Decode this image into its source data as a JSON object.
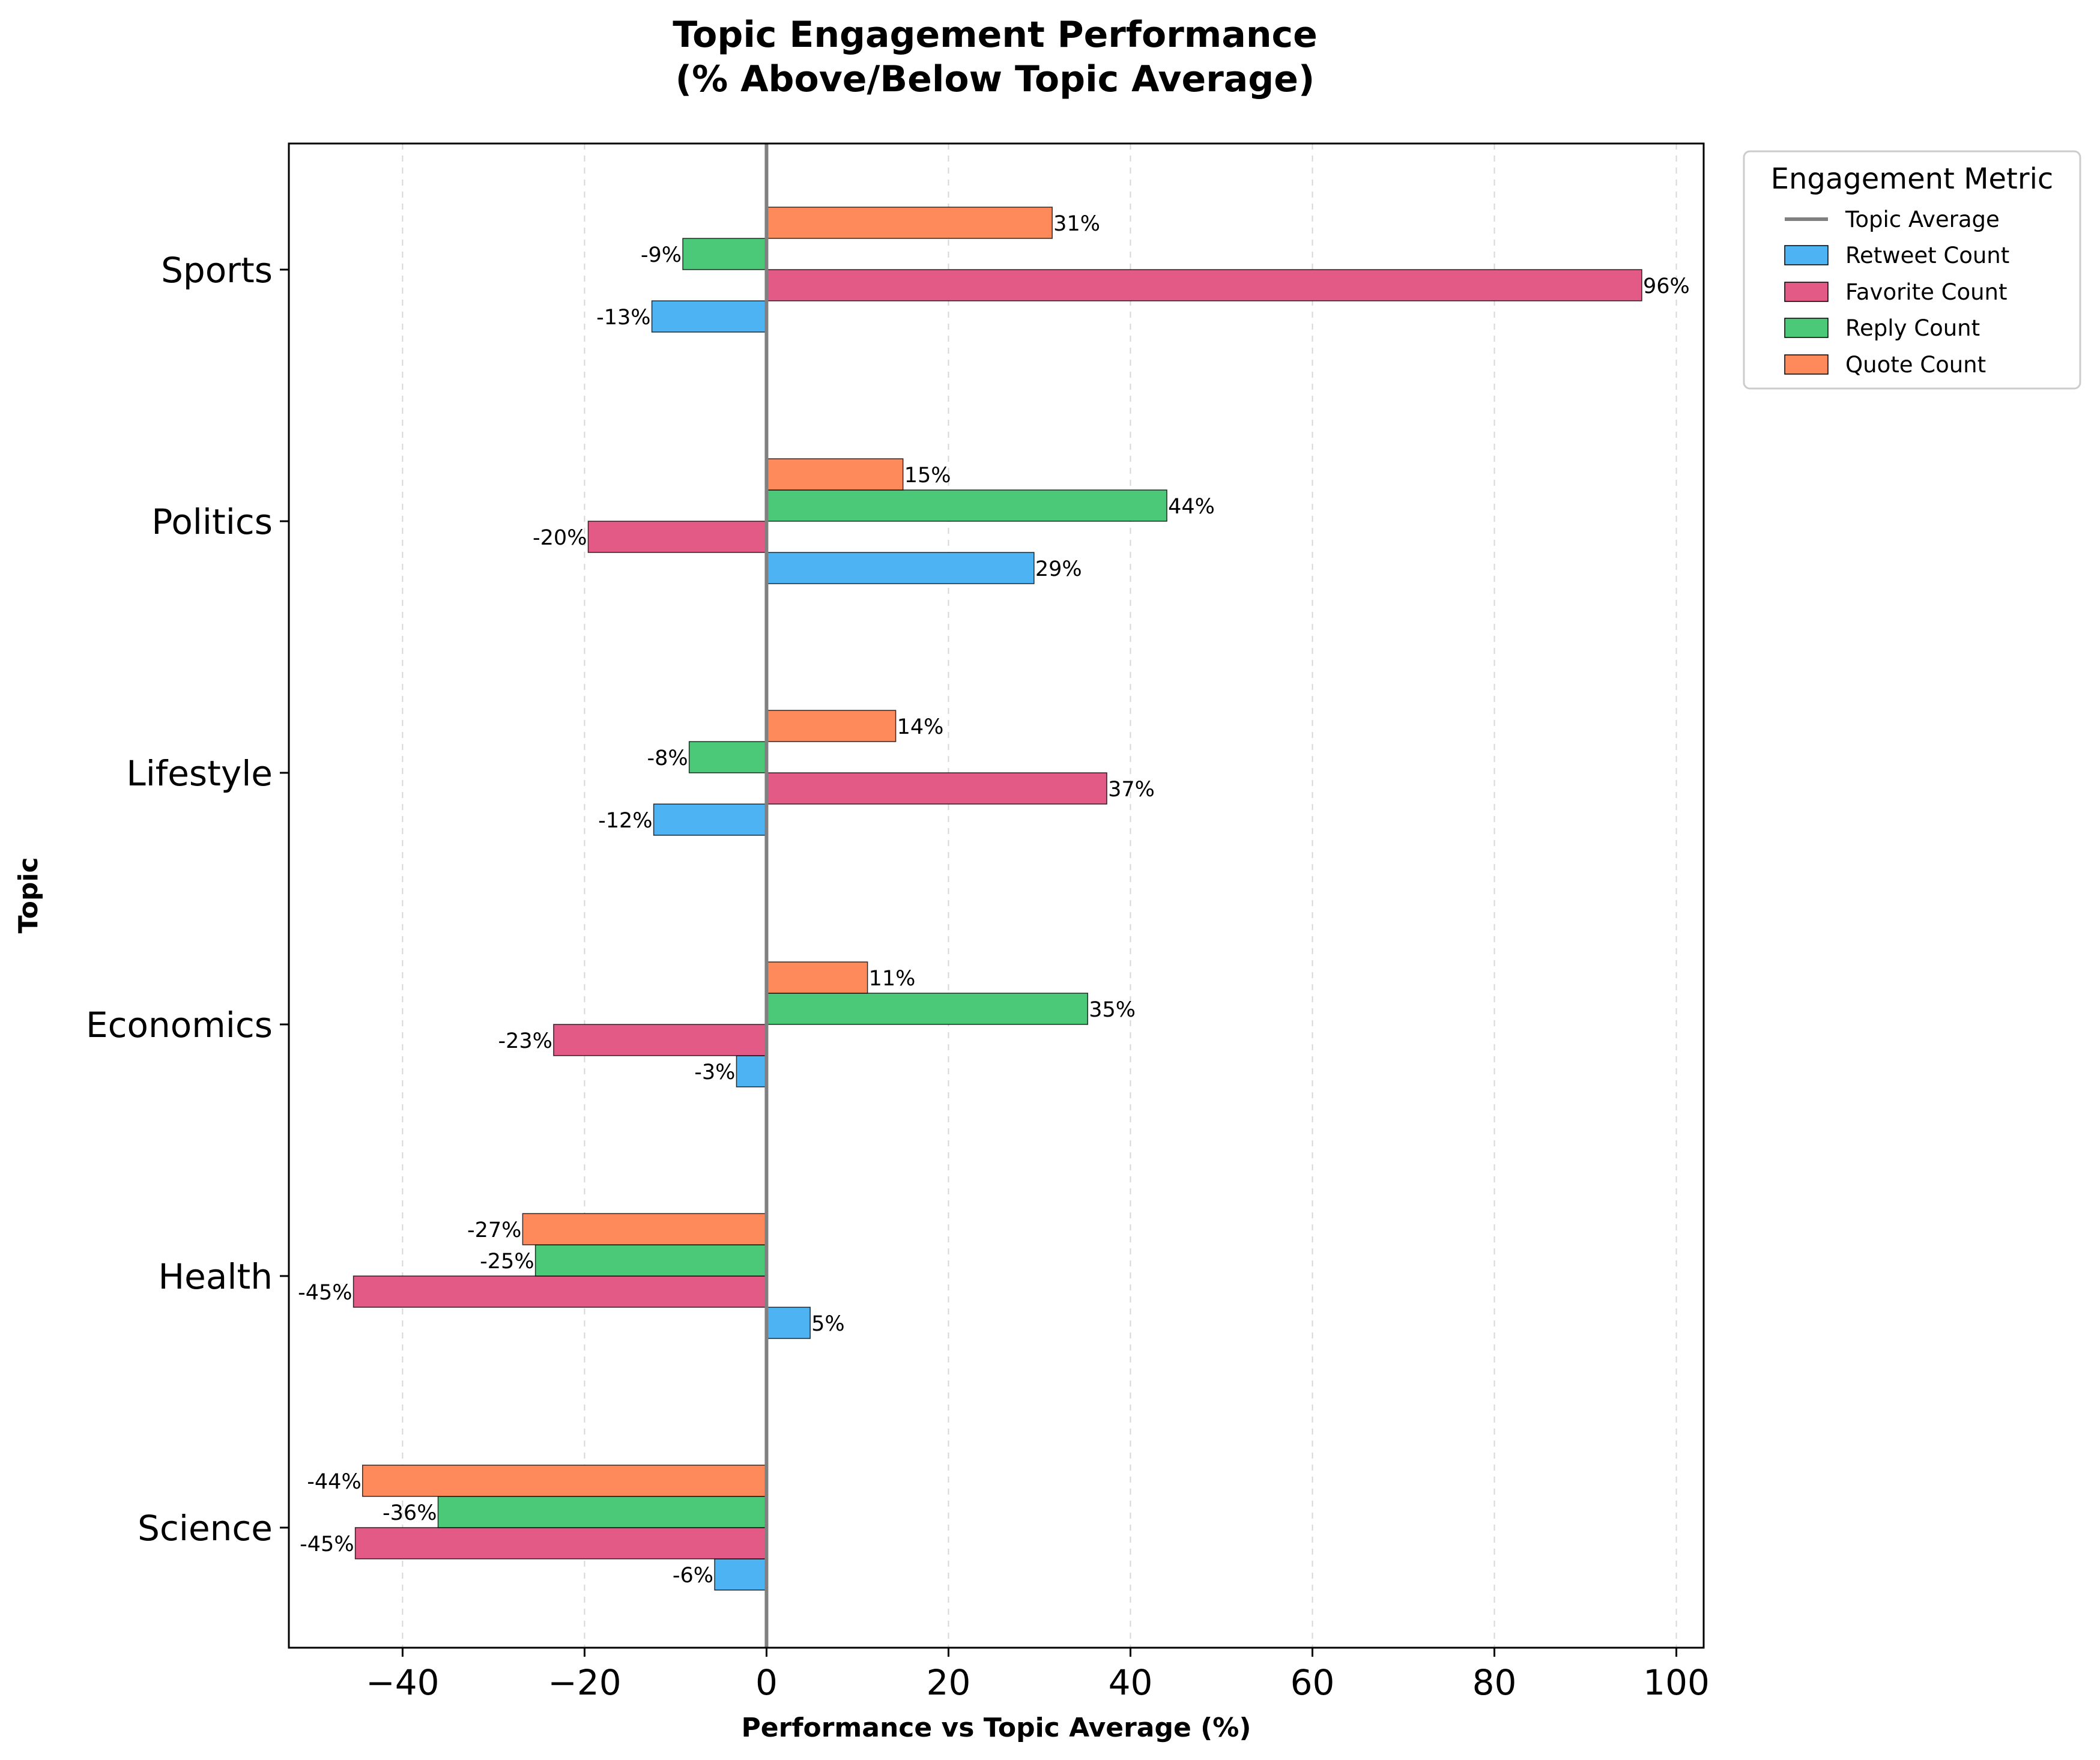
{
  "chart_data": {
    "type": "bar",
    "orientation": "horizontal",
    "title_line1": "Topic Engagement Performance",
    "title_line2": "(% Above/Below Topic Average)",
    "xlabel": "Performance vs Topic Average (%)",
    "ylabel": "Topic",
    "xlim": [
      -52.5,
      103
    ],
    "xticks": [
      -40,
      -20,
      0,
      20,
      40,
      60,
      80,
      100
    ],
    "xtick_labels": [
      "−40",
      "−20",
      "0",
      "20",
      "40",
      "60",
      "80",
      "100"
    ],
    "grid": "x-dashed",
    "categories": [
      "Sports",
      "Politics",
      "Lifestyle",
      "Economics",
      "Health",
      "Science"
    ],
    "series": [
      {
        "name": "Retweet Count",
        "color": "#4db3f2",
        "values": [
          -12.6,
          29.4,
          -12.4,
          -3.3,
          4.8,
          -5.7
        ],
        "labels": [
          "-13%",
          "29%",
          "-12%",
          "-3%",
          "5%",
          "-6%"
        ]
      },
      {
        "name": "Favorite Count",
        "color": "#e35a87",
        "values": [
          96.2,
          -19.6,
          37.4,
          -23.4,
          -45.4,
          -45.2
        ],
        "labels": [
          "96%",
          "-20%",
          "37%",
          "-23%",
          "-45%",
          "-45%"
        ]
      },
      {
        "name": "Reply Count",
        "color": "#4cc879",
        "values": [
          -9.2,
          44.0,
          -8.5,
          35.3,
          -25.4,
          -36.1
        ],
        "labels": [
          "-9%",
          "44%",
          "-8%",
          "35%",
          "-25%",
          "-36%"
        ]
      },
      {
        "name": "Quote Count",
        "color": "#fe8a5b",
        "values": [
          31.4,
          15.0,
          14.2,
          11.1,
          -26.8,
          -44.4
        ],
        "labels": [
          "31%",
          "15%",
          "14%",
          "11%",
          "-27%",
          "-44%"
        ]
      }
    ],
    "reference_line": {
      "name": "Topic Average",
      "value": 0,
      "color": "#808080"
    },
    "legend": {
      "title": "Engagement Metric",
      "placement": "outside-top-right"
    }
  }
}
